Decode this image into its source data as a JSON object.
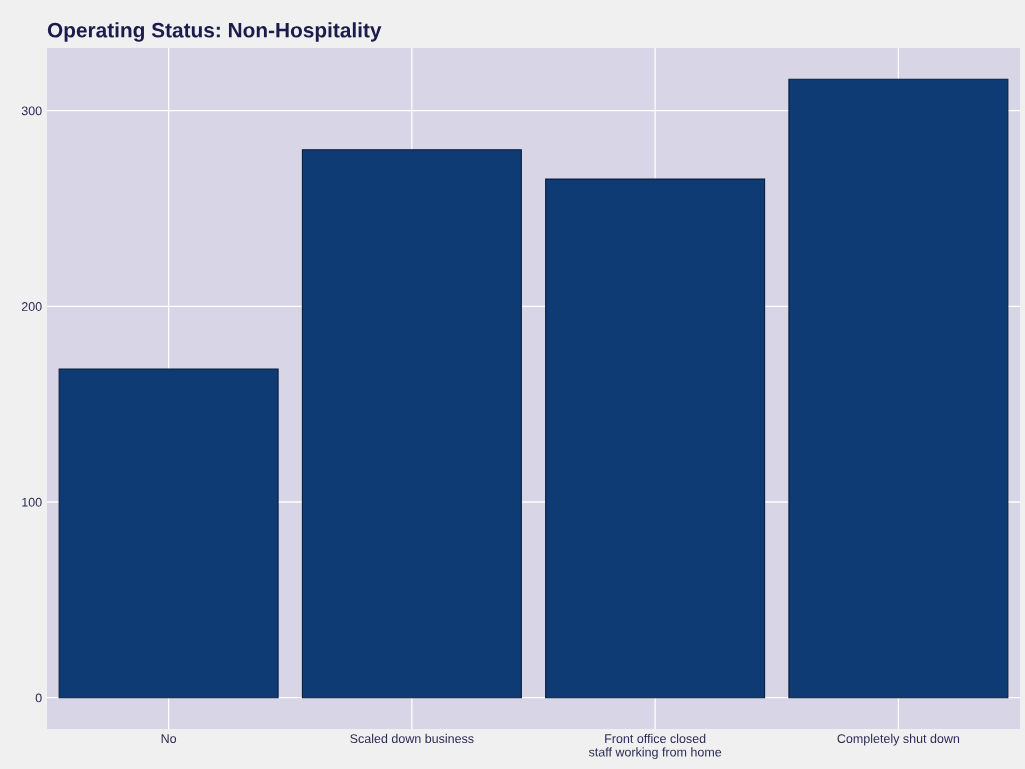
{
  "chart_data": {
    "type": "bar",
    "title": "Operating Status: Non-Hospitality",
    "categories": [
      "No",
      "Scaled down business",
      "Front office closed\nstaff working from home",
      "Completely shut down"
    ],
    "values": [
      168,
      280,
      265,
      316
    ],
    "color": "#0e3b73",
    "ylim": [
      -16,
      332
    ],
    "yticks": [
      0,
      100,
      200,
      300
    ],
    "grid": true
  }
}
